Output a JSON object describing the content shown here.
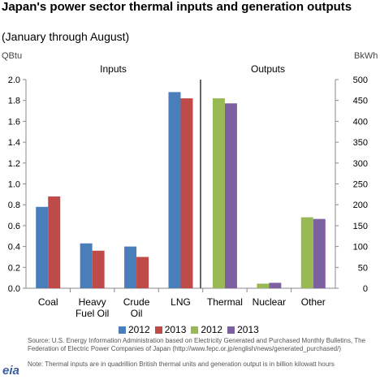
{
  "header": {
    "title": "Japan's power sector thermal inputs and generation outputs",
    "subtitle": "(January through August)"
  },
  "chart_data": {
    "type": "bar",
    "left_axis": {
      "label": "QBtu",
      "min": 0,
      "max": 2.0,
      "ticks": [
        "0.0",
        "0.2",
        "0.4",
        "0.6",
        "0.8",
        "1.0",
        "1.2",
        "1.4",
        "1.6",
        "1.8",
        "2.0"
      ]
    },
    "right_axis": {
      "label": "BkWh",
      "min": 0,
      "max": 500,
      "ticks": [
        "0",
        "50",
        "100",
        "150",
        "200",
        "250",
        "300",
        "350",
        "400",
        "450",
        "500"
      ]
    },
    "groups": [
      {
        "label": "Inputs",
        "axis": "left",
        "categories": [
          "Coal",
          "Heavy Fuel Oil",
          "Crude Oil",
          "LNG"
        ],
        "series": [
          {
            "name": "2012",
            "color": "#4a7ebb",
            "values": [
              0.78,
              0.43,
              0.4,
              1.88
            ]
          },
          {
            "name": "2013",
            "color": "#be4b48",
            "values": [
              0.88,
              0.36,
              0.3,
              1.82
            ]
          }
        ]
      },
      {
        "label": "Outputs",
        "axis": "right",
        "categories": [
          "Thermal",
          "Nuclear",
          "Other"
        ],
        "series": [
          {
            "name": "2012",
            "color": "#98b954",
            "values": [
              455,
              11,
              170
            ]
          },
          {
            "name": "2013",
            "color": "#7d60a0",
            "values": [
              443,
              13,
              166
            ]
          }
        ]
      }
    ],
    "category_labels": [
      [
        "Coal"
      ],
      [
        "Heavy",
        "Fuel Oil"
      ],
      [
        "Crude",
        "Oil"
      ],
      [
        "LNG"
      ],
      [
        "Thermal"
      ],
      [
        "Nuclear"
      ],
      [
        "Other"
      ]
    ],
    "grid": false
  },
  "legend": [
    {
      "label": "2012",
      "color": "#4a7ebb"
    },
    {
      "label": "2013",
      "color": "#be4b48"
    },
    {
      "label": "2012",
      "color": "#98b954"
    },
    {
      "label": "2013",
      "color": "#7d60a0"
    }
  ],
  "footer": {
    "source": "Source: U.S. Energy Information Administration based on Electricity Generated and Purchased Monthly Bulletins, The Federation of Electric Power Companies of Japan (http://www.fepc.or.jp/english/news/generated_purchased/)",
    "note": "Note: Thermal inputs are in quadrillion British thermal units and generation output is in billion kilowatt hours",
    "logo": "eia"
  }
}
